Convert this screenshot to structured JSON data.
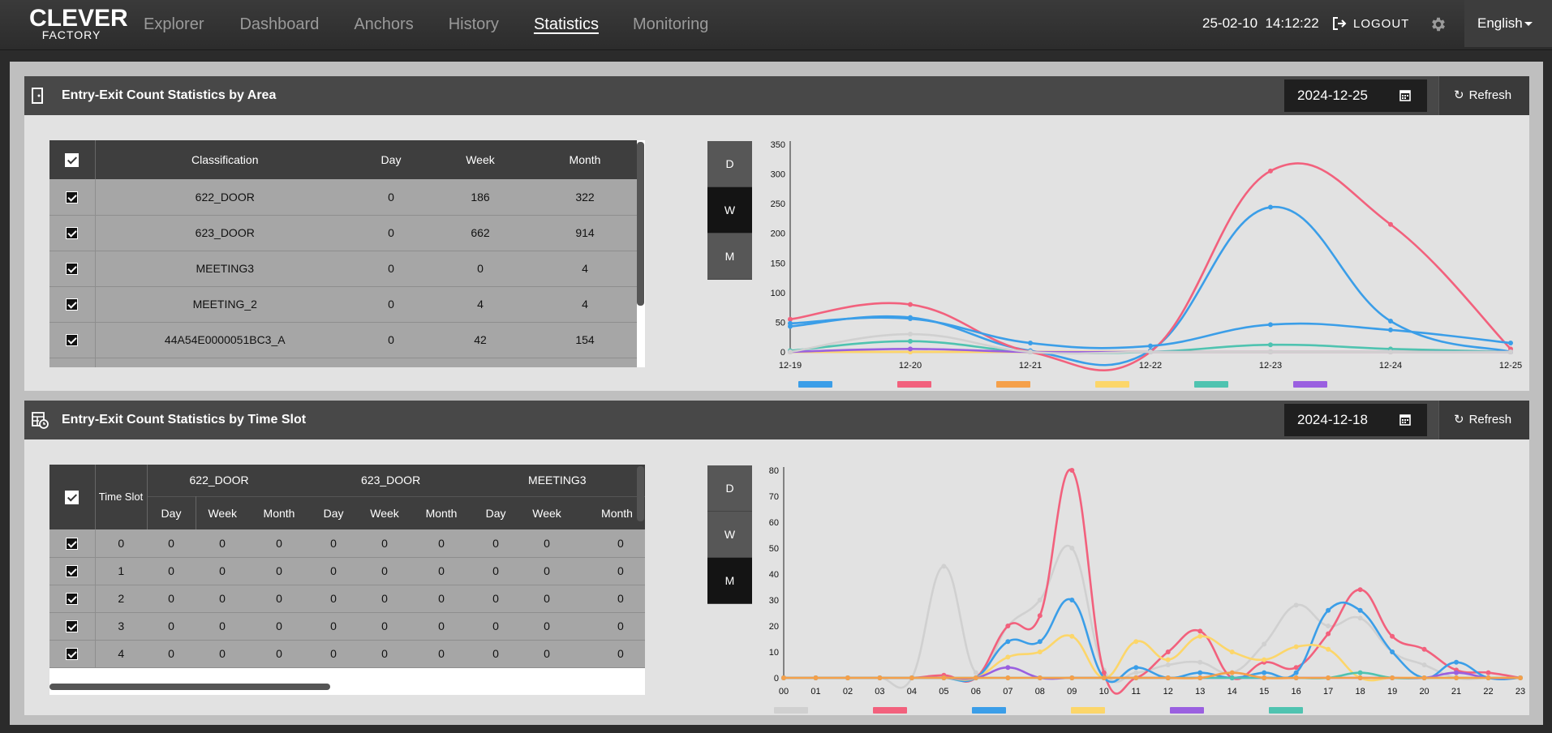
{
  "header": {
    "logo_line1": "CLEVER",
    "logo_line2": "FACTORY",
    "nav": [
      "Explorer",
      "Dashboard",
      "Anchors",
      "History",
      "Statistics",
      "Monitoring"
    ],
    "active_nav": "Statistics",
    "datetime": "25-02-10  14:12:22",
    "logout_label": "LOGOUT",
    "language": "English"
  },
  "area_panel": {
    "title": "Entry-Exit Count Statistics by Area",
    "date": "2024-12-25",
    "refresh_label": "Refresh",
    "columns": [
      "Classification",
      "Day",
      "Week",
      "Month"
    ],
    "rows": [
      {
        "name": "622_DOOR",
        "day": "0",
        "week": "186",
        "month": "322"
      },
      {
        "name": "623_DOOR",
        "day": "0",
        "week": "662",
        "month": "914"
      },
      {
        "name": "MEETING3",
        "day": "0",
        "week": "0",
        "month": "4"
      },
      {
        "name": "MEETING_2",
        "day": "0",
        "week": "4",
        "month": "4"
      },
      {
        "name": "44A54E0000051BC3_A",
        "day": "0",
        "week": "42",
        "month": "154"
      }
    ],
    "range_buttons": [
      "D",
      "W",
      "M"
    ],
    "selected_range": "W"
  },
  "slot_panel": {
    "title": "Entry-Exit Count Statistics by Time Slot",
    "date": "2024-12-18",
    "refresh_label": "Refresh",
    "time_slot_header": "Time Slot",
    "groups": [
      "622_DOOR",
      "623_DOOR",
      "MEETING3"
    ],
    "sub_columns": [
      "Day",
      "Week",
      "Month"
    ],
    "rows": [
      {
        "slot": "0",
        "values": [
          "0",
          "0",
          "0",
          "0",
          "0",
          "0",
          "0",
          "0",
          "0"
        ]
      },
      {
        "slot": "1",
        "values": [
          "0",
          "0",
          "0",
          "0",
          "0",
          "0",
          "0",
          "0",
          "0"
        ]
      },
      {
        "slot": "2",
        "values": [
          "0",
          "0",
          "0",
          "0",
          "0",
          "0",
          "0",
          "0",
          "0"
        ]
      },
      {
        "slot": "3",
        "values": [
          "0",
          "0",
          "0",
          "0",
          "0",
          "0",
          "0",
          "0",
          "0"
        ]
      },
      {
        "slot": "4",
        "values": [
          "0",
          "0",
          "0",
          "0",
          "0",
          "0",
          "0",
          "0",
          "0"
        ]
      }
    ],
    "range_buttons": [
      "D",
      "W",
      "M"
    ],
    "selected_range": "M"
  },
  "chart_data": [
    {
      "type": "line",
      "categories": [
        "12-19",
        "12-20",
        "12-21",
        "12-22",
        "12-23",
        "12-24",
        "12-25"
      ],
      "ylim": [
        0,
        350
      ],
      "yticks": [
        0,
        50,
        100,
        150,
        200,
        250,
        300,
        350
      ],
      "legend": "bottom",
      "series": [
        {
          "color": "#3b9ee8",
          "values": [
            43,
            58,
            2,
            2,
            244,
            52,
            0
          ]
        },
        {
          "color": "#f2617d",
          "values": [
            55,
            80,
            0,
            0,
            305,
            215,
            5
          ]
        },
        {
          "color": "#f5a04a",
          "values": [
            0,
            0,
            0,
            0,
            0,
            0,
            0
          ]
        },
        {
          "color": "#fcd66a",
          "values": [
            0,
            0,
            0,
            0,
            0,
            0,
            0
          ]
        },
        {
          "color": "#4fc3b0",
          "values": [
            2,
            18,
            0,
            0,
            12,
            5,
            0
          ]
        },
        {
          "color": "#9a60e0",
          "values": [
            0,
            5,
            0,
            0,
            0,
            0,
            0
          ]
        },
        {
          "color": "#3b9ee8",
          "values": [
            48,
            56,
            15,
            10,
            46,
            37,
            15
          ]
        },
        {
          "color": "#d0d0d0",
          "values": [
            0,
            30,
            0,
            0,
            0,
            0,
            0
          ]
        }
      ]
    },
    {
      "type": "line",
      "categories": [
        "00",
        "01",
        "02",
        "03",
        "04",
        "05",
        "06",
        "07",
        "08",
        "09",
        "10",
        "11",
        "12",
        "13",
        "14",
        "15",
        "16",
        "17",
        "18",
        "19",
        "20",
        "21",
        "22",
        "23"
      ],
      "ylim": [
        0,
        80
      ],
      "yticks": [
        0,
        10,
        20,
        30,
        40,
        50,
        60,
        70,
        80
      ],
      "legend": "bottom",
      "series": [
        {
          "color": "#d0d0d0",
          "values": [
            0,
            0,
            0,
            0,
            0,
            43,
            2,
            20,
            30,
            50,
            3,
            2,
            5,
            6,
            2,
            13,
            28,
            20,
            23,
            10,
            5,
            0,
            0,
            0
          ]
        },
        {
          "color": "#f2617d",
          "values": [
            0,
            0,
            0,
            0,
            0,
            1,
            0,
            20,
            24,
            80,
            2,
            0,
            10,
            18,
            0,
            6,
            4,
            17,
            34,
            16,
            11,
            3,
            2,
            0
          ]
        },
        {
          "color": "#3b9ee8",
          "values": [
            0,
            0,
            0,
            0,
            0,
            0,
            0,
            14,
            14,
            30,
            0,
            4,
            0,
            2,
            0,
            2,
            2,
            26,
            26,
            10,
            0,
            6,
            0,
            0
          ]
        },
        {
          "color": "#fcd66a",
          "values": [
            0,
            0,
            0,
            0,
            0,
            0,
            0,
            8,
            10,
            16,
            0,
            14,
            7,
            16,
            10,
            7,
            12,
            11,
            0,
            0,
            0,
            0,
            0,
            0
          ]
        },
        {
          "color": "#9a60e0",
          "values": [
            0,
            0,
            0,
            0,
            0,
            0,
            0,
            4,
            0,
            0,
            0,
            0,
            0,
            0,
            0,
            0,
            0,
            0,
            0,
            0,
            0,
            2,
            0,
            0
          ]
        },
        {
          "color": "#4fc3b0",
          "values": [
            0,
            0,
            0,
            0,
            0,
            0,
            0,
            0,
            0,
            0,
            0,
            0,
            0,
            0,
            0,
            0,
            0,
            0,
            2,
            0,
            0,
            0,
            0,
            0
          ]
        },
        {
          "color": "#f5a04a",
          "values": [
            0,
            0,
            0,
            0,
            0,
            0,
            0,
            0,
            0,
            0,
            0,
            0,
            0,
            0,
            2,
            0,
            0,
            0,
            0,
            0,
            0,
            0,
            0,
            0
          ]
        }
      ]
    }
  ]
}
